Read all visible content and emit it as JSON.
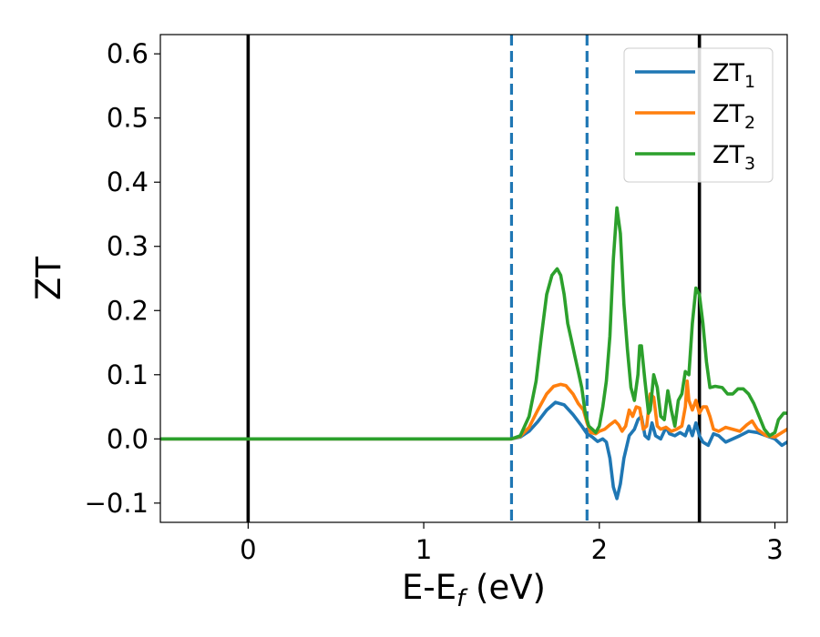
{
  "chart_data": {
    "type": "line",
    "xlabel": {
      "main": "E-E",
      "sub": "f",
      "unit": " (eV)"
    },
    "ylabel": "ZT",
    "xlim": [
      -0.5,
      3.07
    ],
    "ylim": [
      -0.13,
      0.63
    ],
    "xticks": [
      0,
      1,
      2,
      3
    ],
    "xtick_labels": [
      "0",
      "1",
      "2",
      "3"
    ],
    "yticks": [
      -0.1,
      0.0,
      0.1,
      0.2,
      0.3,
      0.4,
      0.5,
      0.6
    ],
    "ytick_labels": [
      "−0.1",
      "0.0",
      "0.1",
      "0.2",
      "0.3",
      "0.4",
      "0.5",
      "0.6"
    ],
    "grid": false,
    "legend_position": "top-right",
    "vertical_lines": [
      {
        "x": 0.0,
        "style": "solid",
        "color": "#000000"
      },
      {
        "x": 2.57,
        "style": "solid",
        "color": "#000000"
      },
      {
        "x": 1.5,
        "style": "dashed",
        "color": "#1f77b4"
      },
      {
        "x": 1.93,
        "style": "dashed",
        "color": "#1f77b4"
      }
    ],
    "series": [
      {
        "name": "ZT",
        "subscript": "1",
        "color": "#1f77b4",
        "points": [
          [
            -0.5,
            0
          ],
          [
            1.5,
            0
          ],
          [
            1.55,
            0.003
          ],
          [
            1.6,
            0.012
          ],
          [
            1.65,
            0.027
          ],
          [
            1.7,
            0.045
          ],
          [
            1.75,
            0.057
          ],
          [
            1.8,
            0.053
          ],
          [
            1.85,
            0.038
          ],
          [
            1.9,
            0.02
          ],
          [
            1.93,
            0.008
          ],
          [
            1.96,
            0.003
          ],
          [
            1.99,
            -0.004
          ],
          [
            2.02,
            0.0
          ],
          [
            2.04,
            -0.005
          ],
          [
            2.06,
            -0.03
          ],
          [
            2.08,
            -0.075
          ],
          [
            2.1,
            -0.093
          ],
          [
            2.12,
            -0.07
          ],
          [
            2.14,
            -0.03
          ],
          [
            2.17,
            0.005
          ],
          [
            2.2,
            0.015
          ],
          [
            2.22,
            0.03
          ],
          [
            2.24,
            0.035
          ],
          [
            2.26,
            0.005
          ],
          [
            2.28,
            0.0
          ],
          [
            2.3,
            0.025
          ],
          [
            2.32,
            0.005
          ],
          [
            2.35,
            0.0
          ],
          [
            2.38,
            0.018
          ],
          [
            2.4,
            0.008
          ],
          [
            2.43,
            0.005
          ],
          [
            2.46,
            0.01
          ],
          [
            2.49,
            0.005
          ],
          [
            2.51,
            0.02
          ],
          [
            2.53,
            0.005
          ],
          [
            2.55,
            0.025
          ],
          [
            2.57,
            0.005
          ],
          [
            2.59,
            -0.005
          ],
          [
            2.62,
            -0.01
          ],
          [
            2.65,
            0.008
          ],
          [
            2.68,
            0.005
          ],
          [
            2.72,
            -0.005
          ],
          [
            2.76,
            0.0
          ],
          [
            2.8,
            0.005
          ],
          [
            2.85,
            0.012
          ],
          [
            2.9,
            0.01
          ],
          [
            2.95,
            0.005
          ],
          [
            3.0,
            0.0
          ],
          [
            3.04,
            -0.01
          ],
          [
            3.07,
            -0.005
          ]
        ]
      },
      {
        "name": "ZT",
        "subscript": "2",
        "color": "#ff7f0e",
        "points": [
          [
            -0.5,
            0
          ],
          [
            1.5,
            0
          ],
          [
            1.55,
            0.004
          ],
          [
            1.6,
            0.018
          ],
          [
            1.65,
            0.045
          ],
          [
            1.7,
            0.07
          ],
          [
            1.74,
            0.082
          ],
          [
            1.78,
            0.085
          ],
          [
            1.81,
            0.083
          ],
          [
            1.85,
            0.07
          ],
          [
            1.88,
            0.055
          ],
          [
            1.91,
            0.045
          ],
          [
            1.93,
            0.025
          ],
          [
            1.95,
            0.01
          ],
          [
            1.98,
            0.008
          ],
          [
            2.0,
            0.012
          ],
          [
            2.03,
            0.015
          ],
          [
            2.06,
            0.022
          ],
          [
            2.09,
            0.028
          ],
          [
            2.11,
            0.022
          ],
          [
            2.13,
            0.012
          ],
          [
            2.15,
            0.02
          ],
          [
            2.17,
            0.045
          ],
          [
            2.19,
            0.035
          ],
          [
            2.21,
            0.05
          ],
          [
            2.23,
            0.048
          ],
          [
            2.25,
            0.015
          ],
          [
            2.27,
            0.02
          ],
          [
            2.29,
            0.07
          ],
          [
            2.31,
            0.065
          ],
          [
            2.33,
            0.02
          ],
          [
            2.35,
            0.015
          ],
          [
            2.38,
            0.018
          ],
          [
            2.41,
            0.012
          ],
          [
            2.44,
            0.015
          ],
          [
            2.47,
            0.02
          ],
          [
            2.49,
            0.05
          ],
          [
            2.5,
            0.09
          ],
          [
            2.51,
            0.06
          ],
          [
            2.53,
            0.045
          ],
          [
            2.55,
            0.06
          ],
          [
            2.57,
            0.04
          ],
          [
            2.59,
            0.05
          ],
          [
            2.61,
            0.05
          ],
          [
            2.63,
            0.035
          ],
          [
            2.65,
            0.015
          ],
          [
            2.68,
            0.012
          ],
          [
            2.72,
            0.018
          ],
          [
            2.76,
            0.015
          ],
          [
            2.8,
            0.012
          ],
          [
            2.84,
            0.022
          ],
          [
            2.87,
            0.028
          ],
          [
            2.9,
            0.015
          ],
          [
            2.95,
            0.005
          ],
          [
            3.0,
            0.003
          ],
          [
            3.04,
            0.01
          ],
          [
            3.07,
            0.015
          ]
        ]
      },
      {
        "name": "ZT",
        "subscript": "3",
        "color": "#2ca02c",
        "points": [
          [
            -0.5,
            0
          ],
          [
            1.5,
            0
          ],
          [
            1.55,
            0.005
          ],
          [
            1.6,
            0.035
          ],
          [
            1.64,
            0.09
          ],
          [
            1.67,
            0.16
          ],
          [
            1.7,
            0.225
          ],
          [
            1.73,
            0.255
          ],
          [
            1.76,
            0.265
          ],
          [
            1.78,
            0.255
          ],
          [
            1.8,
            0.225
          ],
          [
            1.82,
            0.18
          ],
          [
            1.84,
            0.155
          ],
          [
            1.86,
            0.13
          ],
          [
            1.88,
            0.105
          ],
          [
            1.9,
            0.08
          ],
          [
            1.92,
            0.04
          ],
          [
            1.94,
            0.02
          ],
          [
            1.96,
            0.015
          ],
          [
            1.98,
            0.01
          ],
          [
            2.0,
            0.02
          ],
          [
            2.02,
            0.05
          ],
          [
            2.04,
            0.09
          ],
          [
            2.06,
            0.16
          ],
          [
            2.08,
            0.28
          ],
          [
            2.1,
            0.36
          ],
          [
            2.12,
            0.32
          ],
          [
            2.14,
            0.21
          ],
          [
            2.16,
            0.14
          ],
          [
            2.18,
            0.08
          ],
          [
            2.2,
            0.06
          ],
          [
            2.22,
            0.1
          ],
          [
            2.23,
            0.145
          ],
          [
            2.24,
            0.145
          ],
          [
            2.26,
            0.09
          ],
          [
            2.28,
            0.04
          ],
          [
            2.29,
            0.045
          ],
          [
            2.31,
            0.1
          ],
          [
            2.33,
            0.08
          ],
          [
            2.35,
            0.035
          ],
          [
            2.37,
            0.03
          ],
          [
            2.39,
            0.075
          ],
          [
            2.41,
            0.045
          ],
          [
            2.43,
            0.02
          ],
          [
            2.45,
            0.06
          ],
          [
            2.47,
            0.07
          ],
          [
            2.49,
            0.105
          ],
          [
            2.51,
            0.1
          ],
          [
            2.53,
            0.18
          ],
          [
            2.55,
            0.235
          ],
          [
            2.57,
            0.225
          ],
          [
            2.59,
            0.18
          ],
          [
            2.61,
            0.12
          ],
          [
            2.63,
            0.08
          ],
          [
            2.66,
            0.082
          ],
          [
            2.7,
            0.08
          ],
          [
            2.73,
            0.07
          ],
          [
            2.76,
            0.07
          ],
          [
            2.79,
            0.078
          ],
          [
            2.82,
            0.078
          ],
          [
            2.85,
            0.07
          ],
          [
            2.88,
            0.055
          ],
          [
            2.91,
            0.035
          ],
          [
            2.94,
            0.015
          ],
          [
            2.97,
            0.005
          ],
          [
            3.0,
            0.01
          ],
          [
            3.02,
            0.03
          ],
          [
            3.05,
            0.04
          ],
          [
            3.07,
            0.04
          ]
        ]
      }
    ]
  }
}
